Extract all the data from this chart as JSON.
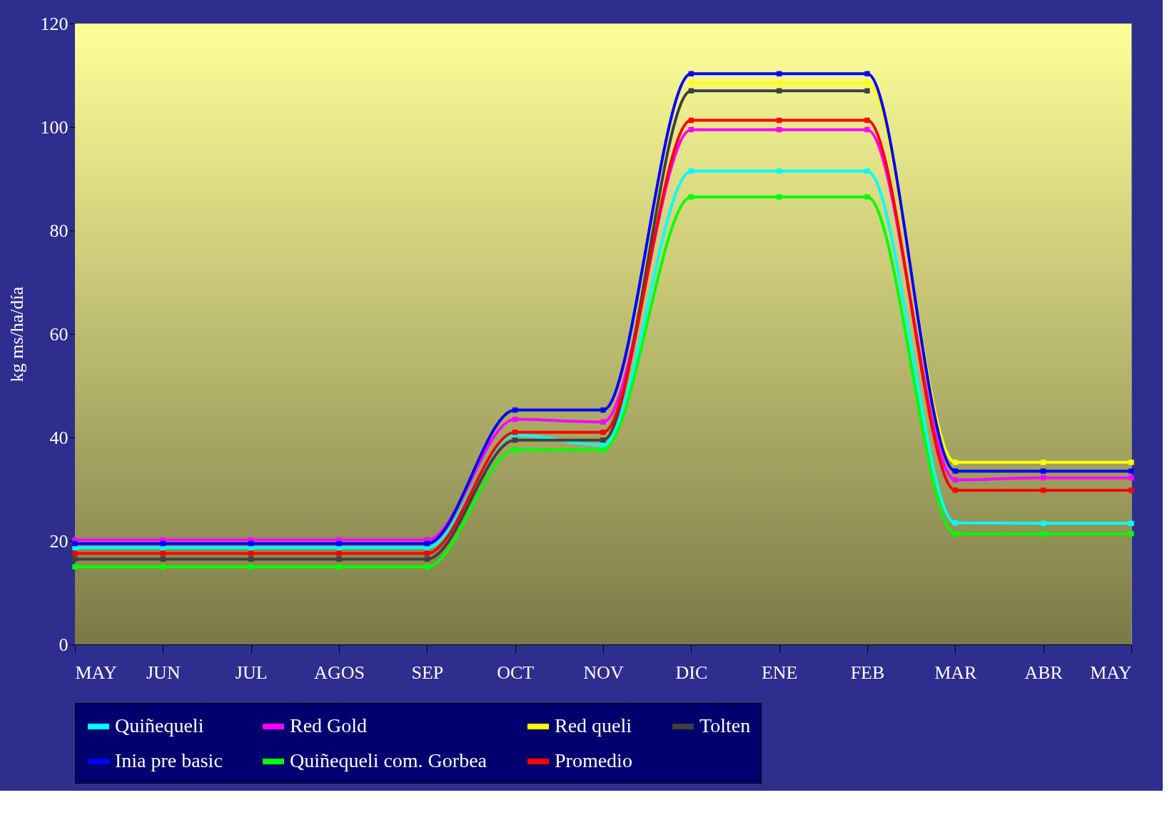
{
  "chart_data": {
    "type": "line",
    "ylabel": "kg ms/ha/día",
    "categories": [
      "MAY",
      "JUN",
      "JUL",
      "AGOS",
      "SEP",
      "OCT",
      "NOV",
      "DIC",
      "ENE",
      "FEB",
      "MAR",
      "ABR",
      "MAY"
    ],
    "series": [
      {
        "name": "Quiñequeli",
        "color": "#00ffff",
        "values": [
          18.7,
          18.7,
          18.7,
          18.7,
          18.7,
          40.5,
          38.5,
          91.5,
          91.5,
          91.5,
          23.5,
          23.4,
          23.4
        ]
      },
      {
        "name": "Red Gold",
        "color": "#ff00ff",
        "values": [
          20.2,
          20.2,
          20.2,
          20.2,
          20.2,
          43.5,
          43,
          99.5,
          99.5,
          99.5,
          31.8,
          32.2,
          32.2
        ]
      },
      {
        "name": "Red queli",
        "color": "#ffff00",
        "values": [
          null,
          null,
          null,
          null,
          null,
          null,
          null,
          108.5,
          108.5,
          108.5,
          35.2,
          35.2,
          35.2
        ]
      },
      {
        "name": "Tolten",
        "color": "#404040",
        "values": [
          16.5,
          16.5,
          16.5,
          16.5,
          16.5,
          39.5,
          39.5,
          107,
          107,
          107,
          null,
          null,
          null
        ]
      },
      {
        "name": "Inia pre basic",
        "color": "#0000ff",
        "values": [
          19.5,
          19.5,
          19.5,
          19.5,
          19.5,
          45.3,
          45.3,
          110.3,
          110.3,
          110.3,
          33.5,
          33.5,
          33.5
        ]
      },
      {
        "name": "Quiñequeli com. Gorbea",
        "color": "#00ff00",
        "values": [
          15,
          15,
          15,
          15,
          15,
          37.6,
          37.6,
          86.5,
          86.5,
          86.5,
          21.4,
          21.4,
          21.4
        ]
      },
      {
        "name": "Promedio",
        "color": "#ff0000",
        "values": [
          17.6,
          17.6,
          17.6,
          17.6,
          17.6,
          41,
          41,
          101.3,
          101.3,
          101.3,
          29.8,
          29.8,
          29.8
        ]
      }
    ],
    "ylim": [
      0,
      120
    ],
    "yticks": [
      0,
      20,
      40,
      60,
      80,
      100,
      120
    ],
    "grid": false,
    "legend": "bottom",
    "marker": "square",
    "line_style": "solid"
  }
}
